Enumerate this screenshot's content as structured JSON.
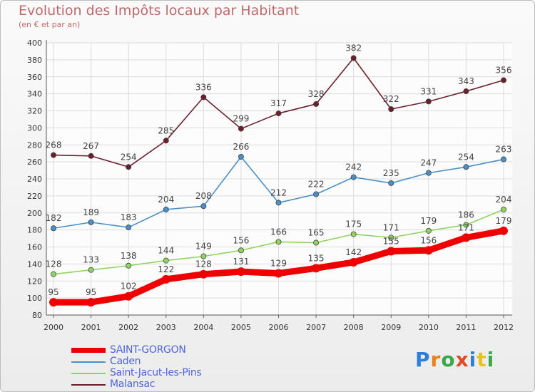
{
  "header": {
    "title": "Evolution des Impôts locaux par Habitant",
    "subtitle": "(en € et par an)"
  },
  "brand": {
    "name": "Proxiti",
    "colors": [
      "#2f7fd8",
      "#e8821e",
      "#39a84a",
      "#e24b2a",
      "#2f7fd8",
      "#e8c21e",
      "#39a84a"
    ]
  },
  "chart_data": {
    "type": "line",
    "x": [
      "2000",
      "2001",
      "2002",
      "2003",
      "2004",
      "2005",
      "2006",
      "2007",
      "2008",
      "2009",
      "2010",
      "2011",
      "2012"
    ],
    "ylim": [
      80,
      400
    ],
    "yticks": [
      "80",
      "100",
      "120",
      "140",
      "160",
      "180",
      "200",
      "220",
      "240",
      "260",
      "280",
      "300",
      "320",
      "340",
      "360",
      "380",
      "400"
    ],
    "grid": true,
    "legend_position": "bottom-left",
    "series": [
      {
        "name": "SAINT-GORGON",
        "color": "#ee0000",
        "values": [
          95,
          95,
          102,
          122,
          128,
          131,
          129,
          135,
          142,
          155,
          156,
          171,
          179
        ],
        "labels": [
          "95",
          "95",
          "102",
          "122",
          "128",
          "131",
          "129",
          "135",
          "142",
          "155",
          "156",
          "171",
          "179"
        ]
      },
      {
        "name": "Caden",
        "color": "#4a90c8",
        "values": [
          182,
          189,
          183,
          204,
          208,
          266,
          212,
          222,
          242,
          235,
          247,
          254,
          263
        ],
        "labels": [
          "182",
          "189",
          "183",
          "204",
          "208",
          "266",
          "212",
          "222",
          "242",
          "235",
          "247",
          "254",
          "263"
        ]
      },
      {
        "name": "Saint-Jacut-les-Pins",
        "color": "#8fd45f",
        "values": [
          128,
          133,
          138,
          144,
          149,
          156,
          166,
          165,
          175,
          171,
          179,
          186,
          204
        ],
        "labels": [
          "128",
          "133",
          "138",
          "144",
          "149",
          "156",
          "166",
          "165",
          "175",
          "171",
          "179",
          "186",
          "204"
        ]
      },
      {
        "name": "Malansac",
        "color": "#6b1f2a",
        "values": [
          268,
          267,
          254,
          285,
          336,
          299,
          317,
          328,
          382,
          322,
          331,
          343,
          356
        ],
        "labels": [
          "268",
          "267",
          "254",
          "285",
          "336",
          "299",
          "317",
          "328",
          "382",
          "322",
          "331",
          "343",
          "356"
        ]
      }
    ]
  }
}
